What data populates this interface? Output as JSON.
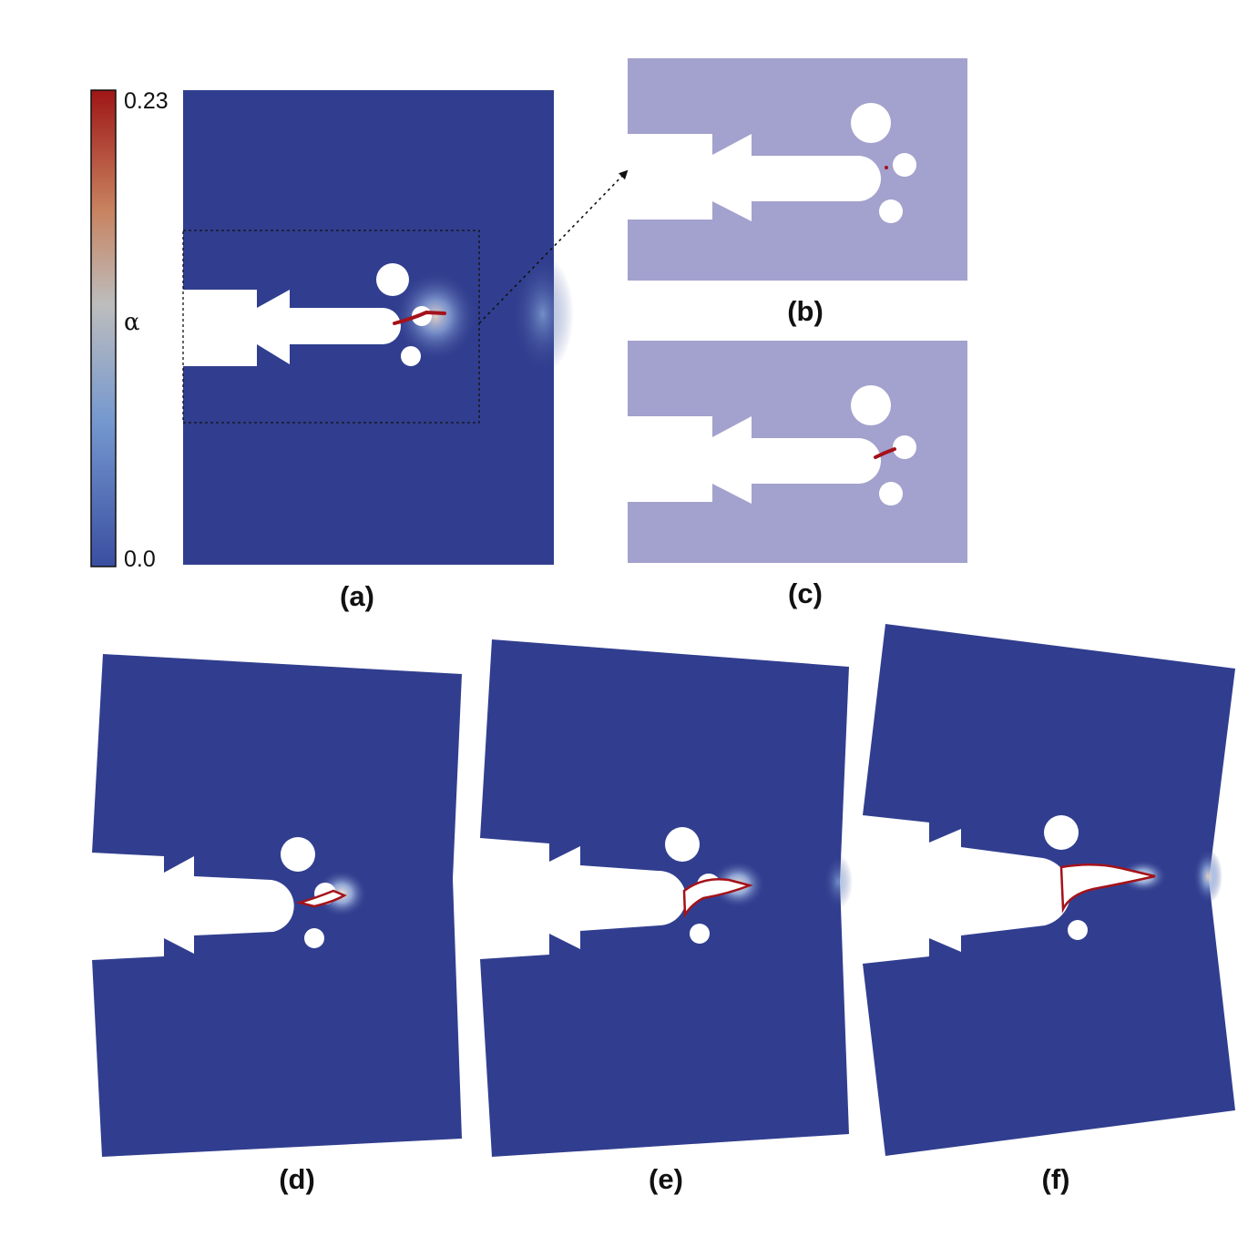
{
  "colorbar": {
    "symbol": "α",
    "max_label": "0.23",
    "min_label": "0.0",
    "colors": [
      "#3a4ea0",
      "#7497cf",
      "#bdbdbd",
      "#c8825f",
      "#9e1616"
    ]
  },
  "colors": {
    "domain": "#313e8f",
    "domain_light": "#a3a1cd",
    "crack": "#a4121a",
    "hole": "#ffffff"
  },
  "panels": {
    "a": {
      "label": "(a)"
    },
    "b": {
      "label": "(b)"
    },
    "c": {
      "label": "(c)"
    },
    "d": {
      "label": "(d)"
    },
    "e": {
      "label": "(e)"
    },
    "f": {
      "label": "(f)"
    }
  }
}
